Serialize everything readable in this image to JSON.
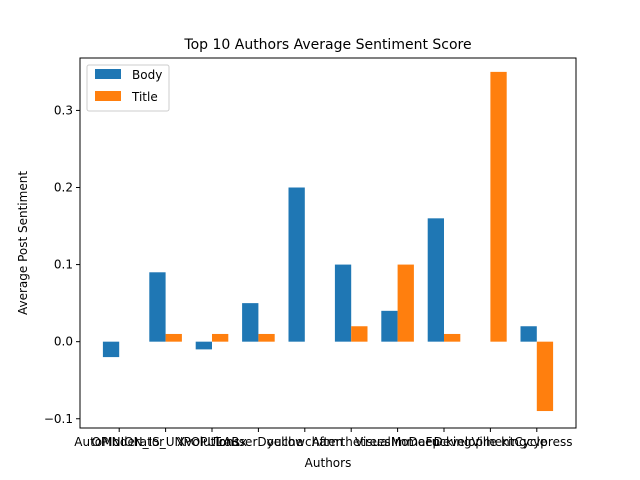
{
  "chart_data": {
    "type": "bar",
    "title": "Top 10 Authors Average Sentiment Score",
    "xlabel": "Authors",
    "ylabel": "Average Post Sentiment",
    "categories": [
      "AutoModerator",
      "OPINION_IS_UNPOPULAR",
      "Xvolutionsx",
      "TrouserDouche",
      "yellowcharm",
      "Afterthetrees",
      "VisualMoDeep",
      "ImmaFuckingVille",
      "DevelopmentCycle",
      "kingcypress"
    ],
    "series": [
      {
        "name": "Body",
        "color": "#1f77b4",
        "values": [
          -0.02,
          0.09,
          -0.01,
          0.05,
          0.2,
          0.1,
          0.04,
          0.16,
          0.0,
          0.02
        ]
      },
      {
        "name": "Title",
        "color": "#ff7f0e",
        "values": [
          0.0,
          0.01,
          0.01,
          0.01,
          0.0,
          0.02,
          0.1,
          0.01,
          0.35,
          -0.09
        ]
      }
    ],
    "ylim": [
      -0.112,
      0.368
    ],
    "yticks": [
      -0.1,
      0.0,
      0.1,
      0.2,
      0.3
    ],
    "ytick_labels": [
      "−0.1",
      "0.0",
      "0.1",
      "0.2",
      "0.3"
    ],
    "grid": false,
    "legend_position": "upper-left"
  }
}
